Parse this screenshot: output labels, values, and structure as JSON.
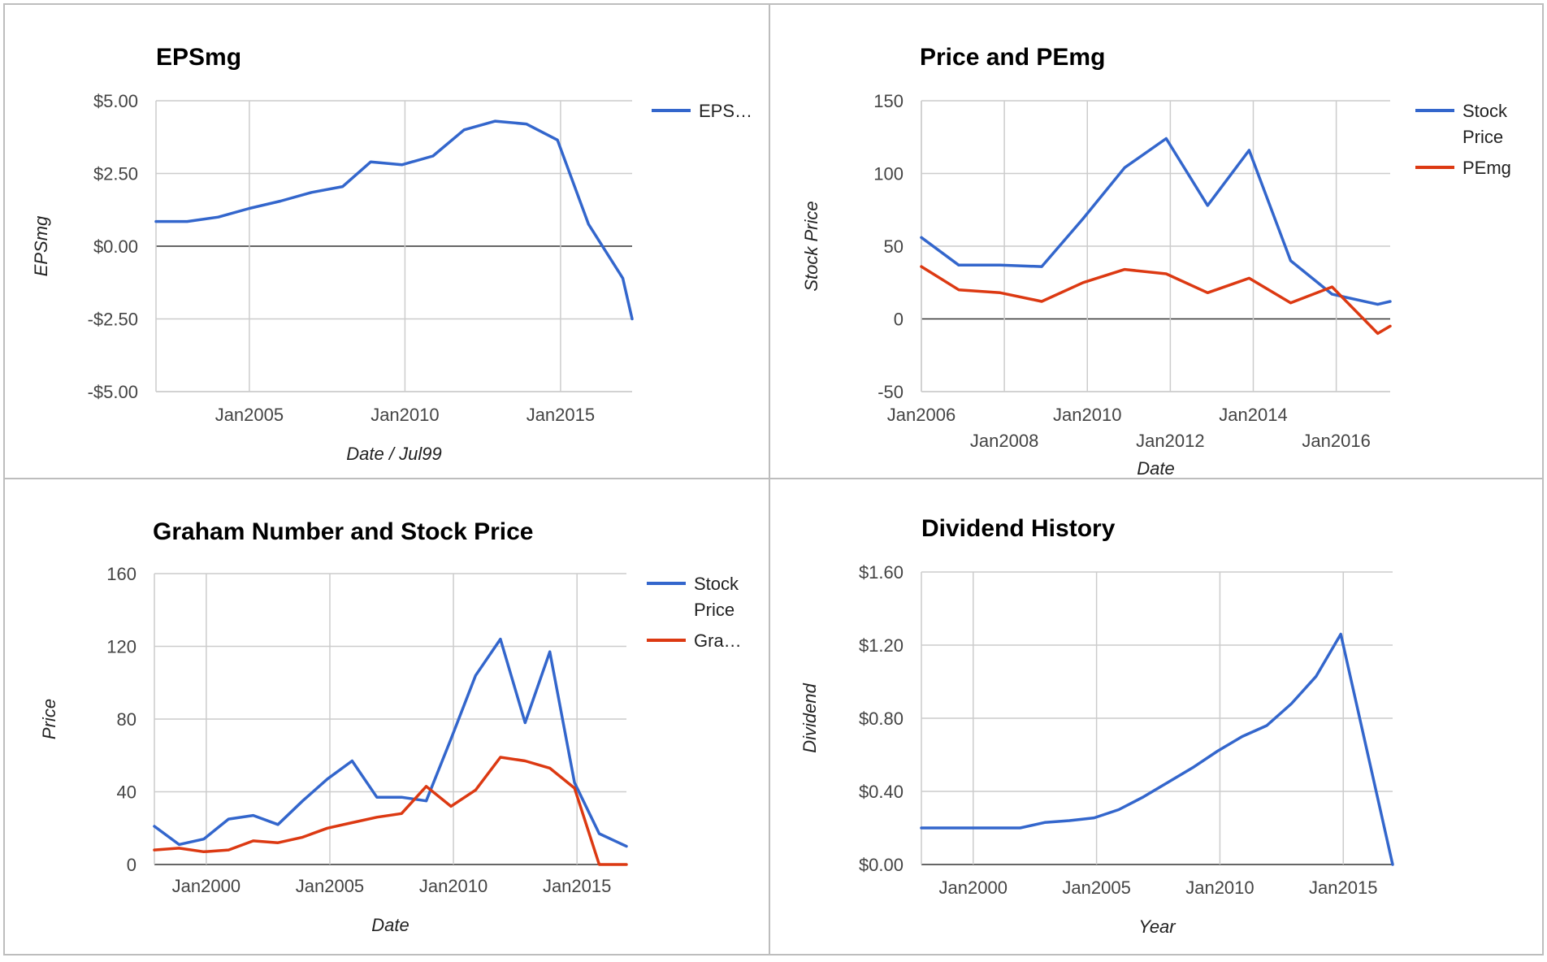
{
  "colors": {
    "blue": "#3366cc",
    "red": "#dc3912"
  },
  "chart_data": [
    {
      "id": "eps",
      "type": "line",
      "title": "EPSmg",
      "xlabel": "Date / Jul99",
      "ylabel": "EPSmg",
      "xlim": [
        2002.0,
        2017.3
      ],
      "ylim": [
        -5,
        5
      ],
      "yticks": [
        5,
        2.5,
        0,
        -2.5,
        -5
      ],
      "ytick_labels": [
        "$5.00",
        "$2.50",
        "$0.00",
        "-$2.50",
        "-$5.00"
      ],
      "xticks": [
        2005,
        2010,
        2015
      ],
      "xtick_labels": [
        "Jan2005",
        "Jan2010",
        "Jan2015"
      ],
      "legend": [
        "EPS…"
      ],
      "series": [
        {
          "name": "EPS…",
          "color": "#3366cc",
          "x": [
            2002.0,
            2003.0,
            2004.0,
            2005.0,
            2006.0,
            2007.0,
            2008.0,
            2008.9,
            2009.9,
            2010.9,
            2011.9,
            2012.9,
            2013.9,
            2014.9,
            2015.9,
            2017.0,
            2017.3
          ],
          "y": [
            0.85,
            0.85,
            1.0,
            1.3,
            1.55,
            1.85,
            2.05,
            2.9,
            2.8,
            3.1,
            4.0,
            4.3,
            4.2,
            3.65,
            0.75,
            -1.1,
            -2.5
          ]
        }
      ]
    },
    {
      "id": "price-pe",
      "type": "line",
      "title": "Price and PEmg",
      "xlabel": "Date",
      "ylabel": "Stock Price",
      "xlim": [
        2006.0,
        2017.3
      ],
      "ylim": [
        -50,
        150
      ],
      "yticks": [
        150,
        100,
        50,
        0,
        -50
      ],
      "ytick_labels": [
        "150",
        "100",
        "50",
        "0",
        "-50"
      ],
      "xticks": [
        2006,
        2008,
        2010,
        2012,
        2014,
        2016
      ],
      "xtick_labels": [
        "Jan2006",
        "Jan2008",
        "Jan2010",
        "Jan2012",
        "Jan2014",
        "Jan2016"
      ],
      "legend": [
        "Stock Price",
        "PEmg"
      ],
      "series": [
        {
          "name": "Stock Price",
          "color": "#3366cc",
          "x": [
            2006.0,
            2006.9,
            2007.9,
            2008.9,
            2009.9,
            2010.9,
            2011.9,
            2012.9,
            2013.9,
            2014.9,
            2015.9,
            2017.0,
            2017.3
          ],
          "y": [
            56,
            37,
            37,
            36,
            69,
            104,
            124,
            78,
            116,
            40,
            17,
            10,
            12
          ]
        },
        {
          "name": "PEmg",
          "color": "#dc3912",
          "x": [
            2006.0,
            2006.9,
            2007.9,
            2008.9,
            2009.9,
            2010.9,
            2011.9,
            2012.9,
            2013.9,
            2014.9,
            2015.9,
            2017.0,
            2017.3
          ],
          "y": [
            36,
            20,
            18,
            12,
            25,
            34,
            31,
            18,
            28,
            11,
            22,
            -10,
            -5
          ]
        }
      ]
    },
    {
      "id": "graham",
      "type": "line",
      "title": "Graham Number and Stock Price",
      "xlabel": "Date",
      "ylabel": "Price",
      "xlim": [
        1997.9,
        2017.0
      ],
      "ylim": [
        0,
        160
      ],
      "yticks": [
        160,
        120,
        80,
        40,
        0
      ],
      "ytick_labels": [
        "160",
        "120",
        "80",
        "40",
        "0"
      ],
      "xticks": [
        2000,
        2005,
        2010,
        2015
      ],
      "xtick_labels": [
        "Jan2000",
        "Jan2005",
        "Jan2010",
        "Jan2015"
      ],
      "legend": [
        "Stock Price",
        "Gra…"
      ],
      "series": [
        {
          "name": "Stock Price",
          "color": "#3366cc",
          "x": [
            1997.9,
            1998.9,
            1999.9,
            2000.9,
            2001.9,
            2002.9,
            2003.9,
            2004.9,
            2005.9,
            2006.9,
            2007.9,
            2008.9,
            2009.9,
            2010.9,
            2011.9,
            2012.9,
            2013.9,
            2014.9,
            2015.9,
            2017.0
          ],
          "y": [
            21,
            11,
            14,
            25,
            27,
            22,
            35,
            47,
            57,
            37,
            37,
            35,
            69,
            104,
            124,
            78,
            117,
            45,
            17,
            10
          ]
        },
        {
          "name": "Gra…",
          "color": "#dc3912",
          "x": [
            1997.9,
            1998.9,
            1999.9,
            2000.9,
            2001.9,
            2002.9,
            2003.9,
            2004.9,
            2005.9,
            2006.9,
            2007.9,
            2008.9,
            2009.9,
            2010.9,
            2011.9,
            2012.9,
            2013.9,
            2014.9,
            2015.9,
            2017.0
          ],
          "y": [
            8,
            9,
            7,
            8,
            13,
            12,
            15,
            20,
            23,
            26,
            28,
            43,
            32,
            41,
            59,
            57,
            53,
            42,
            0,
            0
          ]
        }
      ]
    },
    {
      "id": "dividend",
      "type": "line",
      "title": "Dividend History",
      "xlabel": "Year",
      "ylabel": "Dividend",
      "xlim": [
        1997.9,
        2017.0
      ],
      "ylim": [
        0,
        1.6
      ],
      "yticks": [
        1.6,
        1.2,
        0.8,
        0.4,
        0
      ],
      "ytick_labels": [
        "$1.60",
        "$1.20",
        "$0.80",
        "$0.40",
        "$0.00"
      ],
      "xticks": [
        2000,
        2005,
        2010,
        2015
      ],
      "xtick_labels": [
        "Jan2000",
        "Jan2005",
        "Jan2010",
        "Jan2015"
      ],
      "series": [
        {
          "name": "",
          "color": "#3366cc",
          "x": [
            1997.9,
            1998.9,
            1999.9,
            2000.9,
            2001.9,
            2002.9,
            2003.9,
            2004.9,
            2005.9,
            2006.9,
            2007.9,
            2008.9,
            2009.9,
            2010.9,
            2011.9,
            2012.9,
            2013.9,
            2014.9,
            2017.0
          ],
          "y": [
            0.2,
            0.2,
            0.2,
            0.2,
            0.2,
            0.23,
            0.24,
            0.255,
            0.3,
            0.37,
            0.45,
            0.53,
            0.62,
            0.7,
            0.76,
            0.88,
            1.03,
            1.26,
            0.0
          ]
        }
      ]
    }
  ]
}
